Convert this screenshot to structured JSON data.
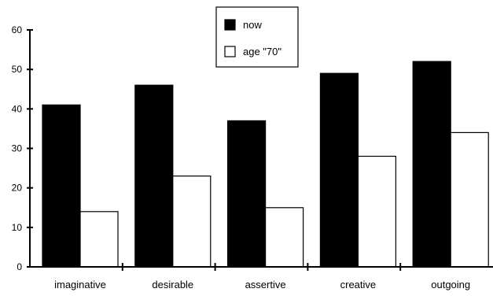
{
  "chart_data": {
    "type": "bar",
    "categories": [
      "imaginative",
      "desirable",
      "assertive",
      "creative",
      "outgoing"
    ],
    "series": [
      {
        "name": "now",
        "values": [
          41,
          46,
          37,
          49,
          52
        ],
        "color": "#000000"
      },
      {
        "name": "age \"70\"",
        "values": [
          14,
          23,
          15,
          28,
          34
        ],
        "color": "#ffffff"
      }
    ],
    "yticks": [
      0,
      10,
      20,
      30,
      40,
      50,
      60
    ],
    "ylim": [
      0,
      60
    ],
    "grid": false,
    "legend_position": "top-center",
    "title": "",
    "xlabel": "",
    "ylabel": ""
  }
}
